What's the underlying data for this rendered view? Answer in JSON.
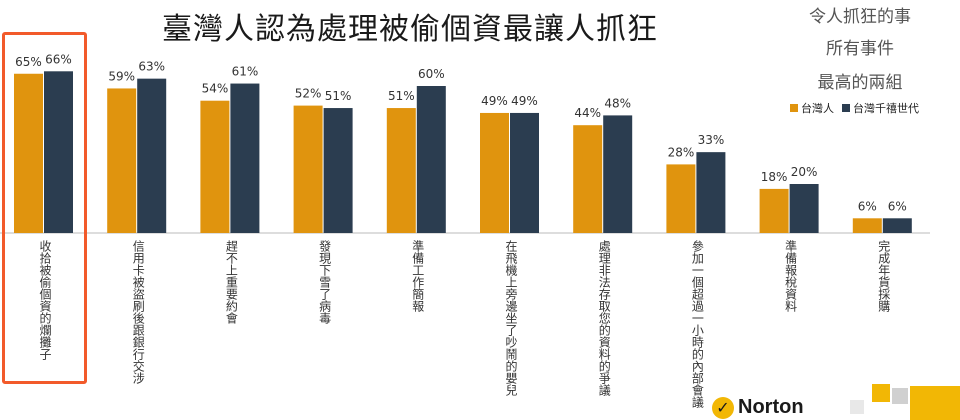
{
  "chart_data": {
    "type": "bar",
    "title": "臺灣人認為處理被偷個資最讓人抓狂",
    "subtitle_lines": [
      "令人抓狂的事",
      "所有事件",
      "最高的兩組"
    ],
    "categories": [
      "收拾被偷個資的爛攤子",
      "信用卡被盜刷後跟銀行交涉",
      "趕不上重要約會",
      "發現下雪了病毒",
      "準備工作簡報",
      "在飛機上旁邊坐了吵鬧的嬰兒",
      "處理非法存取您的資料的爭議",
      "參加一個超過一小時的內部會議",
      "準備報稅資料",
      "完成年貨採購"
    ],
    "series": [
      {
        "name": "台灣人",
        "color": "#e0940e",
        "values": [
          65,
          59,
          54,
          52,
          51,
          49,
          44,
          28,
          18,
          6
        ]
      },
      {
        "name": "台灣千禧世代",
        "color": "#2b3d50",
        "values": [
          66,
          63,
          61,
          51,
          60,
          49,
          48,
          33,
          20,
          6
        ]
      }
    ],
    "data_labels": [
      [
        "65%",
        "66%"
      ],
      [
        "59%",
        "63%"
      ],
      [
        "54%",
        "61%"
      ],
      [
        "52%",
        "51%"
      ],
      [
        "51%",
        "60%"
      ],
      [
        "49%",
        "49%"
      ],
      [
        "44%",
        "48%"
      ],
      [
        "28%",
        "33%"
      ],
      [
        "18%",
        "20%"
      ],
      [
        "6%",
        "6%"
      ]
    ],
    "ylim": [
      0,
      100
    ],
    "legend_position": "top-right",
    "highlighted_category": "收拾被偷個資的爛攤子"
  },
  "brand": {
    "name": "Norton",
    "colors": {
      "accent": "#f2b705",
      "highlight": "#f25a2a",
      "axis": "#bbbbbb"
    }
  }
}
